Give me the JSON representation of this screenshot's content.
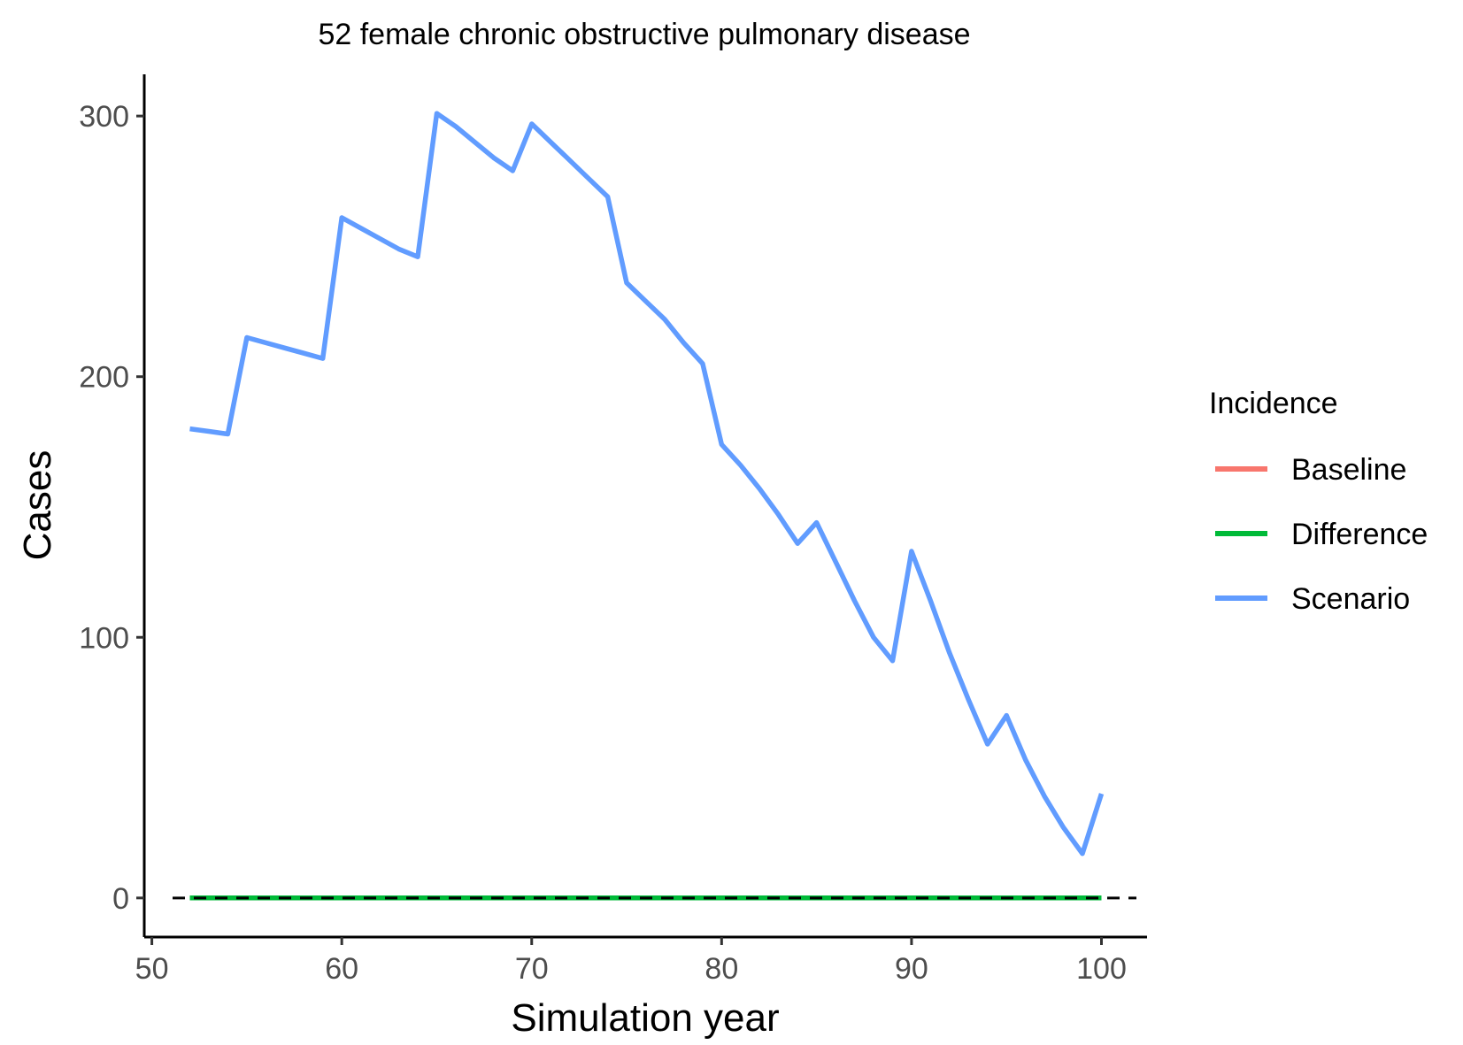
{
  "chart_data": {
    "type": "line",
    "title": "52 female chronic obstructive pulmonary disease",
    "xlabel": "Simulation year",
    "ylabel": "Cases",
    "xlim": [
      49.6,
      102.4
    ],
    "ylim": [
      -15,
      316
    ],
    "x_ticks": [
      50,
      60,
      70,
      80,
      90,
      100
    ],
    "y_ticks": [
      0,
      100,
      200,
      300
    ],
    "grid": false,
    "legend": {
      "title": "Incidence",
      "position": "right"
    },
    "reference_line": {
      "y": 0,
      "style": "dashed",
      "color": "#000000"
    },
    "x": [
      52,
      53,
      54,
      55,
      56,
      57,
      58,
      59,
      60,
      61,
      62,
      63,
      64,
      65,
      66,
      67,
      68,
      69,
      70,
      71,
      72,
      73,
      74,
      75,
      76,
      77,
      78,
      79,
      80,
      81,
      82,
      83,
      84,
      85,
      86,
      87,
      88,
      89,
      90,
      91,
      92,
      93,
      94,
      95,
      96,
      97,
      98,
      99,
      100
    ],
    "series": [
      {
        "name": "Baseline",
        "color": "#F8766D",
        "values": [
          0,
          0,
          0,
          0,
          0,
          0,
          0,
          0,
          0,
          0,
          0,
          0,
          0,
          0,
          0,
          0,
          0,
          0,
          0,
          0,
          0,
          0,
          0,
          0,
          0,
          0,
          0,
          0,
          0,
          0,
          0,
          0,
          0,
          0,
          0,
          0,
          0,
          0,
          0,
          0,
          0,
          0,
          0,
          0,
          0,
          0,
          0,
          0,
          0
        ]
      },
      {
        "name": "Difference",
        "color": "#00BA38",
        "values": [
          0,
          0,
          0,
          0,
          0,
          0,
          0,
          0,
          0,
          0,
          0,
          0,
          0,
          0,
          0,
          0,
          0,
          0,
          0,
          0,
          0,
          0,
          0,
          0,
          0,
          0,
          0,
          0,
          0,
          0,
          0,
          0,
          0,
          0,
          0,
          0,
          0,
          0,
          0,
          0,
          0,
          0,
          0,
          0,
          0,
          0,
          0,
          0,
          0
        ]
      },
      {
        "name": "Scenario",
        "color": "#619CFF",
        "values": [
          180,
          179,
          178,
          215,
          213,
          211,
          209,
          207,
          261,
          257,
          253,
          249,
          246,
          301,
          296,
          290,
          284,
          279,
          297,
          290,
          283,
          276,
          269,
          236,
          229,
          222,
          213,
          205,
          174,
          166,
          157,
          147,
          136,
          144,
          129,
          114,
          100,
          91,
          133,
          114,
          94,
          76,
          59,
          70,
          53,
          39,
          27,
          17,
          40
        ]
      }
    ]
  }
}
